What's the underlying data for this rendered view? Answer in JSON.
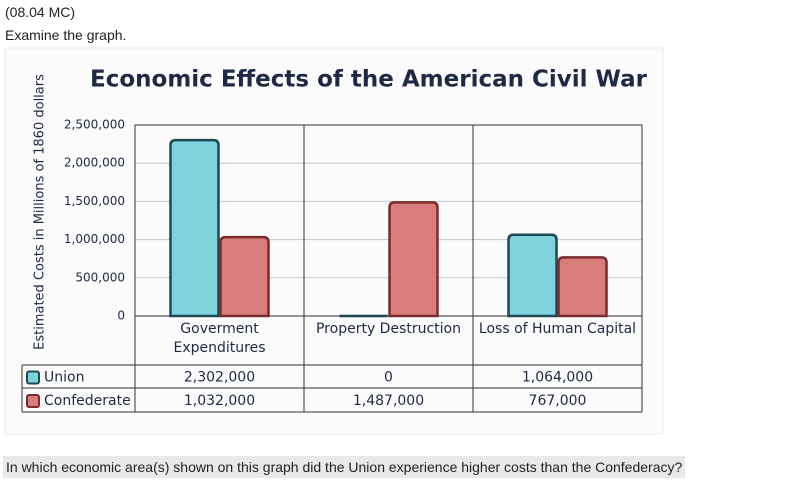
{
  "question_header": "(08.04 MC)",
  "instruction": "Examine the graph.",
  "question": "In which economic area(s) shown on this graph did the Union experience higher costs than the Confederacy?",
  "chart_data": {
    "type": "bar",
    "title": "Economic Effects of the American Civil War",
    "y_label": "Estimated Costs in Millions of 1860 dollars",
    "categories": [
      "Goverment Expenditures",
      "Property Destruction",
      "Loss of Human Capital"
    ],
    "series": [
      {
        "name": "Union",
        "color": "#7fd3dc",
        "values": [
          2302000,
          0,
          1064000
        ],
        "value_labels": [
          "2,302,000",
          "0",
          "1,064,000"
        ]
      },
      {
        "name": "Confederate",
        "color": "#d97c7c",
        "values": [
          1032000,
          1487000,
          767000
        ],
        "value_labels": [
          "1,032,000",
          "1,487,000",
          "767,000"
        ]
      }
    ],
    "ylim": [
      0,
      2500000
    ],
    "yticks": [
      0,
      {
        "value": 500000,
        "label": "500,000"
      },
      {
        "value": 1000000,
        "label": "1,000,000"
      },
      {
        "value": 1500000,
        "label": "1,500,000"
      },
      {
        "value": 2000000,
        "label": "2,000,000"
      },
      {
        "value": 2500000,
        "label": "2,500,000"
      }
    ],
    "grid": true
  }
}
